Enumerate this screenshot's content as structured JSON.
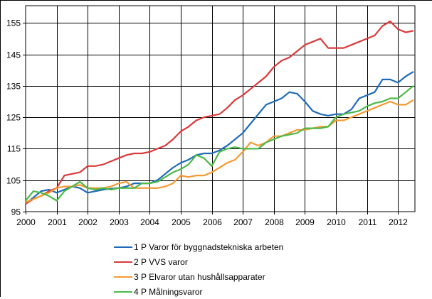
{
  "chart_data": {
    "type": "line",
    "title": "",
    "xlabel": "",
    "ylabel": "",
    "xlim": [
      2000,
      2012.5
    ],
    "ylim": [
      95,
      160
    ],
    "yticks": [
      95,
      105,
      115,
      125,
      135,
      145,
      155
    ],
    "xticks": [
      "2000",
      "2001",
      "2002",
      "2003",
      "2004",
      "2005",
      "2006",
      "2007",
      "2008",
      "2009",
      "2010",
      "2011",
      "2012"
    ],
    "grid": true,
    "legend_position": "bottom",
    "x": [
      2000.0,
      2000.25,
      2000.5,
      2000.75,
      2001.0,
      2001.25,
      2001.5,
      2001.75,
      2002.0,
      2002.25,
      2002.5,
      2002.75,
      2003.0,
      2003.25,
      2003.5,
      2003.75,
      2004.0,
      2004.25,
      2004.5,
      2004.75,
      2005.0,
      2005.25,
      2005.5,
      2005.75,
      2006.0,
      2006.25,
      2006.5,
      2006.75,
      2007.0,
      2007.25,
      2007.5,
      2007.75,
      2008.0,
      2008.25,
      2008.5,
      2008.75,
      2009.0,
      2009.25,
      2009.5,
      2009.75,
      2010.0,
      2010.25,
      2010.5,
      2010.75,
      2011.0,
      2011.25,
      2011.5,
      2011.75,
      2012.0,
      2012.25,
      2012.5
    ],
    "series": [
      {
        "name": "1 P Varor för byggnadstekniska arbeten",
        "color": "#1f6bb5",
        "values": [
          97.5,
          99.5,
          101.5,
          102,
          101,
          102,
          103,
          102.5,
          101,
          101.5,
          102,
          102.3,
          102.5,
          103,
          104,
          104,
          104,
          105,
          107,
          109,
          110.5,
          111.5,
          113,
          113.5,
          113.5,
          114.5,
          116,
          118,
          120,
          123,
          126,
          129,
          130,
          131,
          133,
          132.5,
          130,
          127,
          126,
          125.5,
          126,
          126,
          127.5,
          131,
          132,
          133,
          137,
          137,
          136,
          138,
          139.5
        ]
      },
      {
        "name": "2 P VVS varor",
        "color": "#d93a3c",
        "values": [
          97.5,
          99,
          100,
          101.5,
          102.5,
          106.5,
          107,
          107.5,
          109.5,
          109.5,
          110,
          111,
          112,
          113,
          113.5,
          113.5,
          114,
          115,
          116,
          118,
          120.5,
          122,
          124,
          125,
          125.5,
          126,
          128,
          130.5,
          132,
          134,
          136,
          138,
          141,
          143,
          144,
          146,
          148,
          149,
          150,
          147,
          147,
          147,
          148,
          149,
          150,
          151,
          154,
          155.5,
          153,
          152,
          152.5
        ]
      },
      {
        "name": "3 P Elvaror utan hushållsapparater",
        "color": "#f39a32",
        "values": [
          98,
          99,
          100,
          101,
          102.5,
          103,
          103,
          103.5,
          102.5,
          102.5,
          102.5,
          103,
          104,
          104.5,
          102.5,
          102.5,
          102.5,
          102.5,
          103,
          104,
          106.5,
          106,
          106.5,
          106.5,
          107.5,
          109,
          110.5,
          111.5,
          114,
          117,
          116,
          117,
          119,
          119,
          120,
          121,
          121,
          121.5,
          122,
          122,
          124,
          124,
          125,
          126,
          127,
          128,
          129,
          130,
          129,
          129,
          130.5
        ]
      },
      {
        "name": "4 P Målningsvaror",
        "color": "#4cb94a",
        "values": [
          98.5,
          101.5,
          101,
          100,
          98.5,
          101.5,
          103,
          104.5,
          102.5,
          102,
          102.5,
          102,
          102.5,
          102.5,
          102.5,
          104,
          104,
          104.5,
          106,
          107.5,
          108.5,
          110,
          113,
          112,
          109.5,
          114,
          115,
          115.5,
          115,
          115,
          115,
          117,
          118,
          119,
          119.5,
          120,
          121.5,
          121.5,
          121.5,
          122,
          125,
          126,
          126.5,
          127,
          128.5,
          129.5,
          130,
          131,
          131,
          133,
          135
        ]
      }
    ]
  },
  "legend": {
    "items": [
      {
        "label": "1 P Varor för byggnadstekniska arbeten",
        "color": "#1f6bb5"
      },
      {
        "label": "2 P VVS varor",
        "color": "#d93a3c"
      },
      {
        "label": "3 P Elvaror utan hushållsapparater",
        "color": "#f39a32"
      },
      {
        "label": "4 P Målningsvaror",
        "color": "#4cb94a"
      }
    ]
  }
}
